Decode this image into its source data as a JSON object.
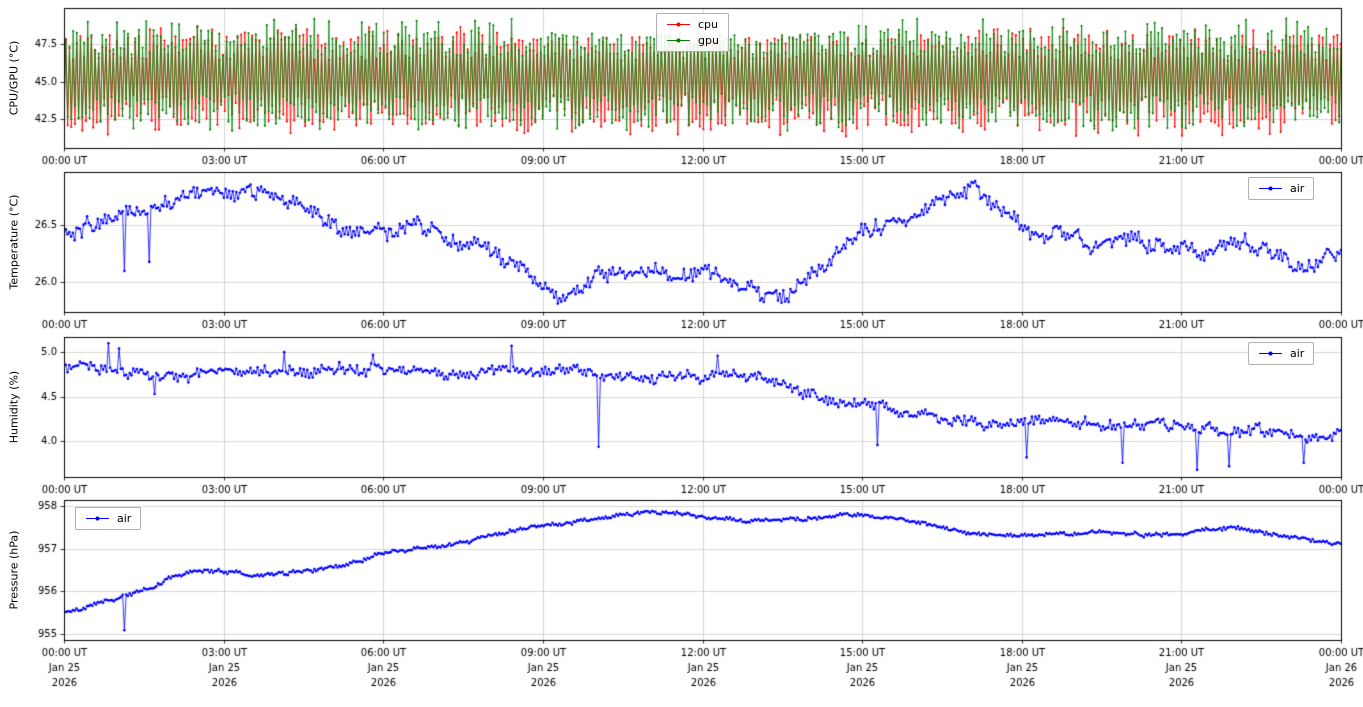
{
  "chart_data": [
    {
      "type": "line",
      "ylabel": "CPU/GPU (°C)",
      "ylim": [
        40.6,
        49.9
      ],
      "yticks": [
        42.5,
        45.0,
        47.5
      ],
      "ytick_labels": [
        "42.5",
        "45.0",
        "47.5"
      ],
      "x_hours": [
        0,
        3,
        6,
        9,
        12,
        15,
        18,
        21,
        24
      ],
      "xtick_labels": [
        "00:00 UT",
        "03:00 UT",
        "06:00 UT",
        "09:00 UT",
        "12:00 UT",
        "15:00 UT",
        "18:00 UT",
        "21:00 UT",
        "00:00 UT"
      ],
      "grid": true,
      "legend": {
        "position": "upper-center-right",
        "entries": [
          {
            "label": "cpu",
            "color": "#ff0000"
          },
          {
            "label": "gpu",
            "color": "#008000"
          }
        ]
      },
      "series": [
        {
          "name": "cpu",
          "color": "#ff0000",
          "pattern": "alternating",
          "points": 700,
          "high": 47.25,
          "low": 43.1,
          "high_spread": 0.85,
          "low_spread": 1.05,
          "extreme_rate": 0.18,
          "extreme_high": 48.65,
          "extreme_low": 41.35,
          "quiet": [
            8.5,
            14.5
          ],
          "quiet_cap": 48.0
        },
        {
          "name": "gpu",
          "color": "#008000",
          "pattern": "alternating",
          "points": 700,
          "high": 47.55,
          "low": 43.3,
          "high_spread": 0.85,
          "low_spread": 0.95,
          "extreme_rate": 0.2,
          "extreme_high": 49.2,
          "extreme_low": 41.75,
          "quiet": [
            8.5,
            14.5
          ],
          "quiet_cap": 48.25
        }
      ]
    },
    {
      "type": "line",
      "ylabel": "Temperature (°C)",
      "ylim": [
        25.74,
        26.97
      ],
      "yticks": [
        26.0,
        26.5
      ],
      "ytick_labels": [
        "26.0",
        "26.5"
      ],
      "x_hours": [
        0,
        3,
        6,
        9,
        12,
        15,
        18,
        21,
        24
      ],
      "xtick_labels": [
        "00:00 UT",
        "03:00 UT",
        "06:00 UT",
        "09:00 UT",
        "12:00 UT",
        "15:00 UT",
        "18:00 UT",
        "21:00 UT",
        "00:00 UT"
      ],
      "grid": true,
      "legend": {
        "position": "upper-right",
        "entries": [
          {
            "label": "air",
            "color": "#0000ff"
          }
        ]
      },
      "series": [
        {
          "name": "air",
          "color": "#0000ff",
          "pattern": "trend",
          "points": 720,
          "scatter": 0.05,
          "trend": [
            [
              0,
              26.45
            ],
            [
              0.5,
              26.5
            ],
            [
              1,
              26.6
            ],
            [
              1.5,
              26.62
            ],
            [
              2,
              26.7
            ],
            [
              2.5,
              26.78
            ],
            [
              3,
              26.8
            ],
            [
              3.5,
              26.8
            ],
            [
              4,
              26.76
            ],
            [
              4.5,
              26.68
            ],
            [
              5,
              26.52
            ],
            [
              5.4,
              26.44
            ],
            [
              5.8,
              26.48
            ],
            [
              6.2,
              26.42
            ],
            [
              6.6,
              26.52
            ],
            [
              7,
              26.44
            ],
            [
              7.4,
              26.34
            ],
            [
              7.8,
              26.3
            ],
            [
              8.2,
              26.22
            ],
            [
              8.6,
              26.12
            ],
            [
              9,
              25.96
            ],
            [
              9.3,
              25.86
            ],
            [
              9.6,
              25.96
            ],
            [
              10,
              26.05
            ],
            [
              10.5,
              26.12
            ],
            [
              11,
              26.1
            ],
            [
              11.5,
              26.04
            ],
            [
              12,
              26.1
            ],
            [
              12.4,
              26.04
            ],
            [
              12.8,
              25.95
            ],
            [
              13.2,
              25.88
            ],
            [
              13.5,
              25.86
            ],
            [
              13.8,
              25.96
            ],
            [
              14.2,
              26.12
            ],
            [
              14.6,
              26.3
            ],
            [
              15,
              26.44
            ],
            [
              15.5,
              26.5
            ],
            [
              16,
              26.6
            ],
            [
              16.5,
              26.7
            ],
            [
              16.8,
              26.78
            ],
            [
              17.05,
              26.86
            ],
            [
              17.3,
              26.76
            ],
            [
              17.6,
              26.62
            ],
            [
              18,
              26.5
            ],
            [
              18.3,
              26.4
            ],
            [
              18.7,
              26.46
            ],
            [
              19,
              26.4
            ],
            [
              19.4,
              26.3
            ],
            [
              19.8,
              26.4
            ],
            [
              20.2,
              26.36
            ],
            [
              20.6,
              26.32
            ],
            [
              21,
              26.3
            ],
            [
              21.4,
              26.26
            ],
            [
              21.8,
              26.3
            ],
            [
              22.2,
              26.36
            ],
            [
              22.6,
              26.3
            ],
            [
              23,
              26.2
            ],
            [
              23.4,
              26.16
            ],
            [
              23.7,
              26.22
            ],
            [
              24,
              26.28
            ]
          ],
          "spikes": [
            [
              1.15,
              26.1
            ],
            [
              1.6,
              26.18
            ]
          ]
        }
      ]
    },
    {
      "type": "line",
      "ylabel": "Humidity (%)",
      "ylim": [
        3.6,
        5.17
      ],
      "yticks": [
        4.0,
        4.5,
        5.0
      ],
      "ytick_labels": [
        "4.0",
        "4.5",
        "5.0"
      ],
      "x_hours": [
        0,
        3,
        6,
        9,
        12,
        15,
        18,
        21,
        24
      ],
      "xtick_labels": [
        "00:00 UT",
        "03:00 UT",
        "06:00 UT",
        "09:00 UT",
        "12:00 UT",
        "15:00 UT",
        "18:00 UT",
        "21:00 UT",
        "00:00 UT"
      ],
      "grid": true,
      "legend": {
        "position": "upper-right",
        "entries": [
          {
            "label": "air",
            "color": "#0000ff"
          }
        ]
      },
      "series": [
        {
          "name": "air",
          "color": "#0000ff",
          "pattern": "trend",
          "points": 720,
          "scatter": 0.045,
          "trend": [
            [
              0,
              4.85
            ],
            [
              0.5,
              4.82
            ],
            [
              1,
              4.78
            ],
            [
              1.5,
              4.74
            ],
            [
              2,
              4.72
            ],
            [
              2.5,
              4.76
            ],
            [
              3,
              4.8
            ],
            [
              3.5,
              4.78
            ],
            [
              4,
              4.8
            ],
            [
              4.5,
              4.78
            ],
            [
              5,
              4.82
            ],
            [
              5.5,
              4.8
            ],
            [
              6,
              4.82
            ],
            [
              6.5,
              4.78
            ],
            [
              7,
              4.76
            ],
            [
              7.5,
              4.78
            ],
            [
              8,
              4.78
            ],
            [
              8.5,
              4.8
            ],
            [
              9,
              4.78
            ],
            [
              9.5,
              4.78
            ],
            [
              10,
              4.75
            ],
            [
              10.5,
              4.72
            ],
            [
              11,
              4.7
            ],
            [
              11.5,
              4.72
            ],
            [
              12,
              4.74
            ],
            [
              12.5,
              4.76
            ],
            [
              13,
              4.72
            ],
            [
              13.4,
              4.66
            ],
            [
              13.8,
              4.58
            ],
            [
              14.2,
              4.5
            ],
            [
              14.6,
              4.44
            ],
            [
              15,
              4.42
            ],
            [
              15.5,
              4.38
            ],
            [
              16,
              4.3
            ],
            [
              16.5,
              4.25
            ],
            [
              17,
              4.21
            ],
            [
              17.5,
              4.18
            ],
            [
              18,
              4.2
            ],
            [
              18.5,
              4.27
            ],
            [
              19,
              4.22
            ],
            [
              19.5,
              4.18
            ],
            [
              20,
              4.18
            ],
            [
              20.5,
              4.22
            ],
            [
              21,
              4.16
            ],
            [
              21.5,
              4.15
            ],
            [
              22,
              4.1
            ],
            [
              22.5,
              4.13
            ],
            [
              23,
              4.1
            ],
            [
              23.5,
              4.04
            ],
            [
              24,
              4.05
            ]
          ],
          "spikes": [
            [
              0.85,
              5.1
            ],
            [
              1.05,
              5.04
            ],
            [
              1.7,
              4.53
            ],
            [
              4.15,
              5.0
            ],
            [
              5.8,
              4.97
            ],
            [
              8.4,
              5.07
            ],
            [
              10.05,
              3.94
            ],
            [
              12.3,
              4.96
            ],
            [
              15.3,
              3.96
            ],
            [
              18.1,
              3.82
            ],
            [
              19.9,
              3.76
            ],
            [
              21.3,
              3.68
            ],
            [
              21.9,
              3.72
            ],
            [
              23.3,
              3.76
            ]
          ]
        }
      ]
    },
    {
      "type": "line",
      "ylabel": "Pressure (hPa)",
      "ylim": [
        954.85,
        958.15
      ],
      "yticks": [
        955,
        956,
        957,
        958
      ],
      "ytick_labels": [
        "955",
        "956",
        "957",
        "958"
      ],
      "x_hours": [
        0,
        3,
        6,
        9,
        12,
        15,
        18,
        21,
        24
      ],
      "xtick_labels": [
        "00:00 UT",
        "03:00 UT",
        "06:00 UT",
        "09:00 UT",
        "12:00 UT",
        "15:00 UT",
        "18:00 UT",
        "21:00 UT",
        "00:00 UT"
      ],
      "xtick_sub_labels": [
        "Jan 25",
        "Jan 25",
        "Jan 25",
        "Jan 25",
        "Jan 25",
        "Jan 25",
        "Jan 25",
        "Jan 25",
        "Jan 26"
      ],
      "xtick_year_labels": [
        "2026",
        "2026",
        "2026",
        "2026",
        "2026",
        "2026",
        "2026",
        "2026",
        "2026"
      ],
      "grid": true,
      "legend": {
        "position": "upper-left",
        "entries": [
          {
            "label": "air",
            "color": "#0000ff"
          }
        ]
      },
      "series": [
        {
          "name": "air",
          "color": "#0000ff",
          "pattern": "trend",
          "points": 720,
          "scatter": 0.032,
          "trend": [
            [
              0,
              955.5
            ],
            [
              0.3,
              955.55
            ],
            [
              0.6,
              955.7
            ],
            [
              1,
              955.85
            ],
            [
              1.4,
              955.98
            ],
            [
              1.8,
              956.18
            ],
            [
              2.1,
              956.35
            ],
            [
              2.4,
              956.46
            ],
            [
              2.7,
              956.5
            ],
            [
              3,
              956.46
            ],
            [
              3.5,
              956.4
            ],
            [
              4,
              956.42
            ],
            [
              4.5,
              956.46
            ],
            [
              5,
              956.55
            ],
            [
              5.5,
              956.68
            ],
            [
              5.85,
              956.85
            ],
            [
              6.2,
              956.92
            ],
            [
              6.6,
              957.0
            ],
            [
              7,
              957.04
            ],
            [
              7.5,
              957.14
            ],
            [
              8,
              957.3
            ],
            [
              8.5,
              957.45
            ],
            [
              9,
              957.55
            ],
            [
              9.5,
              957.6
            ],
            [
              10,
              957.7
            ],
            [
              10.5,
              957.78
            ],
            [
              11,
              957.85
            ],
            [
              11.3,
              957.87
            ],
            [
              11.7,
              957.8
            ],
            [
              12,
              957.76
            ],
            [
              12.5,
              957.7
            ],
            [
              13,
              957.65
            ],
            [
              13.5,
              957.7
            ],
            [
              14,
              957.72
            ],
            [
              14.5,
              957.78
            ],
            [
              15,
              957.8
            ],
            [
              15.4,
              957.74
            ],
            [
              15.8,
              957.7
            ],
            [
              16.2,
              957.6
            ],
            [
              16.6,
              957.48
            ],
            [
              17,
              957.38
            ],
            [
              17.5,
              957.32
            ],
            [
              18,
              957.3
            ],
            [
              18.5,
              957.35
            ],
            [
              19,
              957.35
            ],
            [
              19.5,
              957.4
            ],
            [
              20,
              957.36
            ],
            [
              20.5,
              957.32
            ],
            [
              21,
              957.36
            ],
            [
              21.5,
              957.46
            ],
            [
              22,
              957.5
            ],
            [
              22.5,
              957.4
            ],
            [
              23,
              957.3
            ],
            [
              23.5,
              957.18
            ],
            [
              24,
              957.1
            ]
          ],
          "spikes": [
            [
              1.15,
              955.08
            ]
          ]
        }
      ]
    }
  ]
}
